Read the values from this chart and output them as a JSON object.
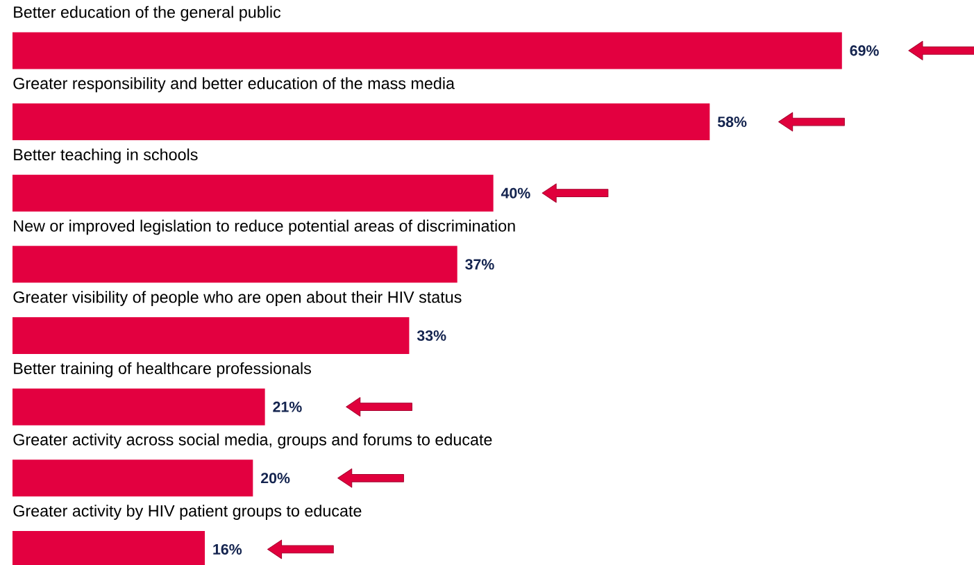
{
  "chart_data": {
    "type": "bar",
    "orientation": "horizontal",
    "categories": [
      "Better education of the general public",
      "Greater responsibility and better education of the mass media",
      "Better teaching in schools",
      "New or improved legislation to reduce potential areas of discrimination",
      "Greater visibility of people who are open about their HIV status",
      "Better training of healthcare professionals",
      "Greater activity across social media, groups and forums to educate",
      "Greater activity by HIV patient groups to educate"
    ],
    "values": [
      69,
      58,
      40,
      37,
      33,
      21,
      20,
      16
    ],
    "value_labels": [
      "69%",
      "58%",
      "40%",
      "37%",
      "33%",
      "21%",
      "20%",
      "16%"
    ],
    "color": "#e30040"
  }
}
